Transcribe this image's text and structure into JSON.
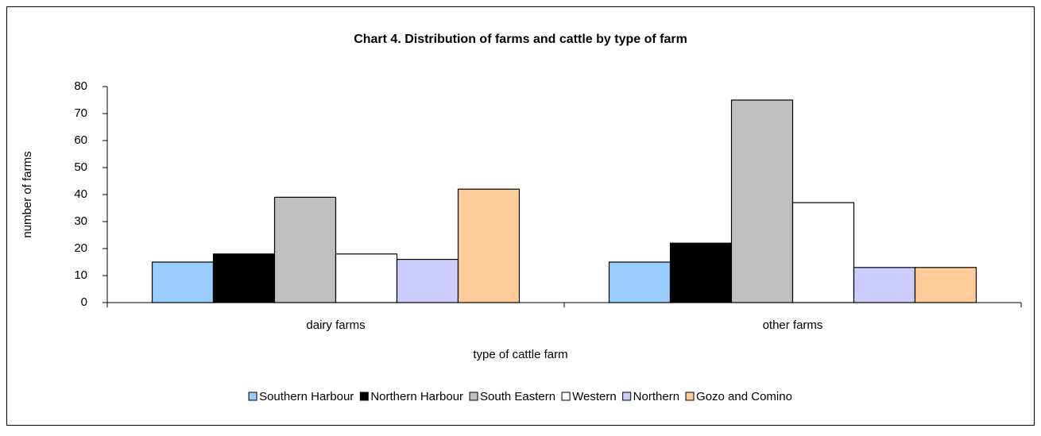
{
  "chart_data": {
    "type": "bar",
    "title": "Chart 4.  Distribution of farms and cattle by type of farm",
    "x_label": "type of cattle farm",
    "y_label": "number of farms",
    "categories": [
      "dairy farms",
      "other farms"
    ],
    "series": [
      {
        "name": "Southern Harbour",
        "color": "#99ccff",
        "values": [
          15,
          15
        ]
      },
      {
        "name": "Northern Harbour",
        "color": "#000000",
        "values": [
          18,
          22
        ]
      },
      {
        "name": "South Eastern",
        "color": "#c0c0c0",
        "values": [
          39,
          75
        ]
      },
      {
        "name": "Western",
        "color": "#ffffff",
        "values": [
          18,
          37
        ]
      },
      {
        "name": "Northern",
        "color": "#ccccff",
        "values": [
          16,
          13
        ]
      },
      {
        "name": "Gozo and Comino",
        "color": "#ffcc99",
        "values": [
          42,
          13
        ]
      }
    ],
    "ylim": [
      0,
      80
    ],
    "yticks": [
      0,
      10,
      20,
      30,
      40,
      50,
      60,
      70,
      80
    ],
    "grid": false,
    "legend": "bottom"
  }
}
